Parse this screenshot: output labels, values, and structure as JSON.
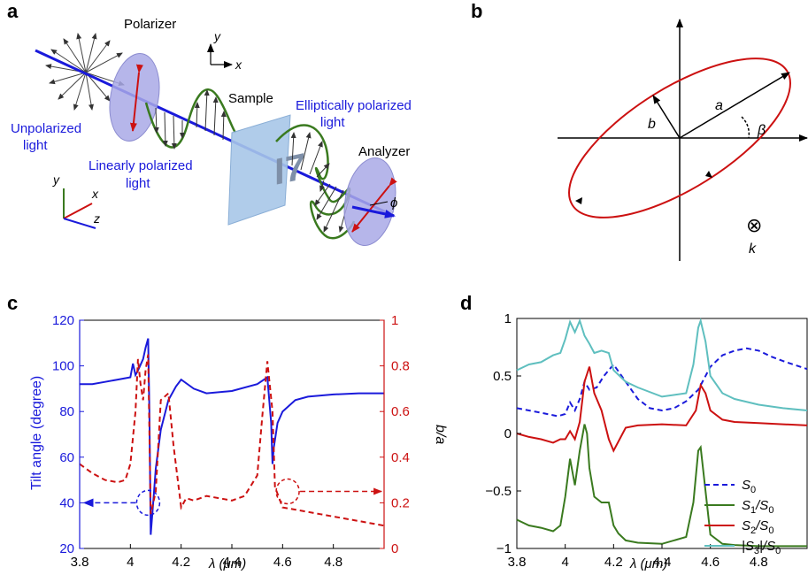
{
  "panel_letters": {
    "a": "a",
    "b": "b",
    "c": "c",
    "d": "d"
  },
  "panel_a": {
    "polarizer": "Polarizer",
    "sample": "Sample",
    "analyzer": "Analyzer",
    "unpolarized_1": "Unpolarized",
    "unpolarized_2": "light",
    "linear_1": "Linearly polarized",
    "linear_2": "light",
    "elliptic_1": "Elliptically polarized",
    "elliptic_2": "light",
    "axis_x": "x",
    "axis_y": "y",
    "axis_z": "z",
    "phi": "ϕ",
    "sample_glyph": "I7"
  },
  "panel_b": {
    "a": "a",
    "b": "b",
    "beta": "β",
    "k": "k",
    "otimes": "⊗"
  },
  "colors": {
    "blue": "#1a1adb",
    "red": "#cc1111",
    "green": "#3a7a1f",
    "cyan": "#5fbfbf"
  },
  "chart_data": [
    {
      "type": "line",
      "panel": "c",
      "xlabel": "λ (μm)",
      "ylabel_left": "Tilt angle (degree)",
      "ylabel_right": "b/a",
      "xlim": [
        3.8,
        5.0
      ],
      "ylim_left": [
        20,
        120
      ],
      "ylim_right": [
        0,
        1
      ],
      "x_ticks": [
        "3.8",
        "4",
        "4.2",
        "4.4",
        "4.6",
        "4.8"
      ],
      "y_ticks_left": [
        "20",
        "40",
        "60",
        "80",
        "100",
        "120"
      ],
      "y_ticks_right": [
        "0",
        "0.2",
        "0.4",
        "0.6",
        "0.8",
        "1"
      ],
      "series": [
        {
          "axis": "left",
          "style": "solid",
          "color": "#1a1adb",
          "x": [
            3.8,
            3.85,
            3.9,
            3.95,
            4.0,
            4.01,
            4.02,
            4.03,
            4.05,
            4.06,
            4.07,
            4.075,
            4.08,
            4.09,
            4.1,
            4.12,
            4.15,
            4.18,
            4.2,
            4.25,
            4.3,
            4.4,
            4.5,
            4.54,
            4.555,
            4.56,
            4.565,
            4.58,
            4.6,
            4.65,
            4.7,
            4.8,
            4.9,
            5.0
          ],
          "y": [
            92,
            92,
            93,
            94,
            95,
            101,
            96,
            98,
            103,
            108,
            112,
            80,
            26,
            40,
            55,
            72,
            85,
            91,
            94,
            90,
            88,
            89,
            92,
            95,
            75,
            57,
            64,
            75,
            80,
            85,
            86.5,
            87.5,
            88,
            88
          ]
        },
        {
          "axis": "right",
          "style": "dashed",
          "color": "#cc1111",
          "x": [
            3.8,
            3.85,
            3.9,
            3.95,
            3.98,
            4.0,
            4.02,
            4.03,
            4.04,
            4.05,
            4.06,
            4.07,
            4.08,
            4.1,
            4.12,
            4.15,
            4.17,
            4.2,
            4.22,
            4.25,
            4.3,
            4.35,
            4.4,
            4.45,
            4.5,
            4.52,
            4.54,
            4.56,
            4.57,
            4.6,
            4.65,
            4.7,
            4.75,
            4.8,
            4.9,
            5.0
          ],
          "y": [
            0.37,
            0.33,
            0.3,
            0.29,
            0.3,
            0.37,
            0.6,
            0.83,
            0.72,
            0.65,
            0.78,
            0.85,
            0.15,
            0.25,
            0.65,
            0.68,
            0.45,
            0.18,
            0.22,
            0.21,
            0.23,
            0.22,
            0.21,
            0.23,
            0.32,
            0.58,
            0.82,
            0.6,
            0.27,
            0.18,
            0.17,
            0.16,
            0.15,
            0.14,
            0.12,
            0.1
          ]
        }
      ],
      "annotations": [
        {
          "text": "",
          "note": "dashed circle at (4.07, 40) with arrow pointing left to 3.82"
        },
        {
          "text": "",
          "note": "dashed circle at (4.62, 0.25) with arrow pointing right to 5.0"
        }
      ]
    },
    {
      "type": "line",
      "panel": "d",
      "xlabel": "λ (μm)",
      "xlim": [
        3.8,
        5.0
      ],
      "ylim": [
        -1,
        1
      ],
      "x_ticks": [
        "3.8",
        "4",
        "4.2",
        "4.4",
        "4.6",
        "4.8"
      ],
      "y_ticks": [
        "−1",
        "−0.5",
        "0",
        "0.5",
        "1"
      ],
      "series": [
        {
          "name": "S0",
          "legend_main": "S",
          "legend_sub": "0",
          "style": "dashed",
          "color": "#1a1adb",
          "x": [
            3.8,
            3.9,
            3.97,
            4.0,
            4.02,
            4.04,
            4.06,
            4.08,
            4.1,
            4.13,
            4.16,
            4.2,
            4.25,
            4.3,
            4.35,
            4.4,
            4.45,
            4.5,
            4.55,
            4.6,
            4.65,
            4.7,
            4.75,
            4.8,
            4.85,
            4.9,
            5.0
          ],
          "y": [
            0.22,
            0.18,
            0.15,
            0.17,
            0.27,
            0.2,
            0.3,
            0.45,
            0.38,
            0.4,
            0.5,
            0.6,
            0.45,
            0.3,
            0.22,
            0.2,
            0.22,
            0.28,
            0.38,
            0.58,
            0.68,
            0.72,
            0.74,
            0.72,
            0.67,
            0.63,
            0.56
          ]
        },
        {
          "name": "S1/S0",
          "legend_main": "S",
          "legend_sub": "1",
          "legend_tail": "/S",
          "legend_tail_sub": "0",
          "style": "solid",
          "color": "#3a7a1f",
          "x": [
            3.8,
            3.85,
            3.9,
            3.95,
            3.98,
            4.0,
            4.02,
            4.04,
            4.06,
            4.08,
            4.09,
            4.1,
            4.12,
            4.15,
            4.18,
            4.2,
            4.22,
            4.25,
            4.3,
            4.4,
            4.5,
            4.53,
            4.55,
            4.56,
            4.58,
            4.6,
            4.65,
            4.7,
            4.8,
            4.9,
            5.0
          ],
          "y": [
            -0.75,
            -0.8,
            -0.82,
            -0.85,
            -0.8,
            -0.55,
            -0.22,
            -0.45,
            -0.15,
            0.08,
            0.0,
            -0.3,
            -0.55,
            -0.6,
            -0.6,
            -0.8,
            -0.87,
            -0.93,
            -0.95,
            -0.96,
            -0.9,
            -0.6,
            -0.15,
            -0.12,
            -0.5,
            -0.88,
            -0.96,
            -0.97,
            -0.98,
            -0.98,
            -0.98
          ]
        },
        {
          "name": "S2/S0",
          "legend_main": "S",
          "legend_sub": "2",
          "legend_tail": "/S",
          "legend_tail_sub": "0",
          "style": "solid",
          "color": "#cc1111",
          "x": [
            3.8,
            3.85,
            3.9,
            3.95,
            3.98,
            4.0,
            4.02,
            4.04,
            4.06,
            4.08,
            4.1,
            4.12,
            4.15,
            4.18,
            4.2,
            4.25,
            4.3,
            4.4,
            4.5,
            4.54,
            4.56,
            4.58,
            4.6,
            4.65,
            4.7,
            4.8,
            4.9,
            5.0
          ],
          "y": [
            0.0,
            -0.03,
            -0.05,
            -0.08,
            -0.05,
            -0.05,
            0.02,
            -0.05,
            0.1,
            0.45,
            0.58,
            0.35,
            0.2,
            -0.05,
            -0.15,
            0.05,
            0.07,
            0.08,
            0.07,
            0.2,
            0.42,
            0.35,
            0.2,
            0.12,
            0.1,
            0.09,
            0.08,
            0.07
          ]
        },
        {
          "name": "|S3|/S0",
          "legend_main": "|S",
          "legend_sub": "3",
          "legend_tail": "|/S",
          "legend_tail_sub": "0",
          "style": "solid",
          "color": "#5fbfbf",
          "x": [
            3.8,
            3.85,
            3.9,
            3.95,
            3.98,
            4.0,
            4.02,
            4.04,
            4.06,
            4.08,
            4.1,
            4.12,
            4.15,
            4.18,
            4.2,
            4.25,
            4.3,
            4.4,
            4.5,
            4.53,
            4.55,
            4.56,
            4.58,
            4.6,
            4.65,
            4.7,
            4.8,
            4.9,
            5.0
          ],
          "y": [
            0.55,
            0.6,
            0.62,
            0.68,
            0.7,
            0.82,
            0.97,
            0.88,
            0.98,
            0.85,
            0.78,
            0.7,
            0.72,
            0.7,
            0.55,
            0.45,
            0.4,
            0.32,
            0.35,
            0.6,
            0.92,
            0.98,
            0.8,
            0.5,
            0.35,
            0.3,
            0.25,
            0.22,
            0.2
          ]
        }
      ],
      "legend_position": "bottom-right"
    }
  ]
}
